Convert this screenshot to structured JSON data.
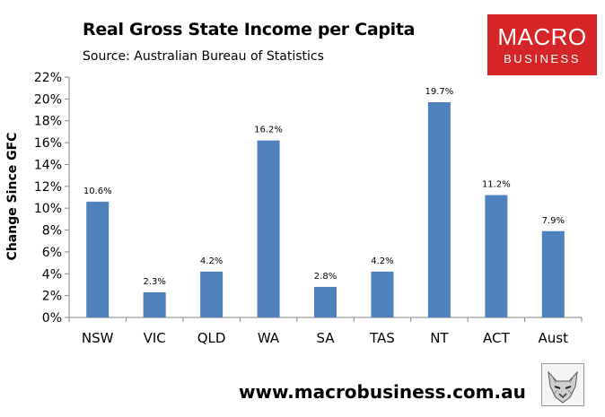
{
  "header": {
    "title": "Real Gross State Income per Capita",
    "source": "Source: Australian Bureau of Statistics"
  },
  "logo": {
    "line1": "MACRO",
    "line2": "BUSINESS"
  },
  "footer": {
    "url": "www.macrobusiness.com.au"
  },
  "colors": {
    "bar": "#4f81bd",
    "logo_bg": "#d62526"
  },
  "chart_data": {
    "type": "bar",
    "title": "Real Gross State Income per Capita",
    "ylabel": "Change Since GFC",
    "xlabel": "",
    "categories": [
      "NSW",
      "VIC",
      "QLD",
      "WA",
      "SA",
      "TAS",
      "NT",
      "ACT",
      "Aust"
    ],
    "values": [
      10.6,
      2.3,
      4.2,
      16.2,
      2.8,
      4.2,
      19.7,
      11.2,
      7.9
    ],
    "data_labels": [
      "10.6%",
      "2.3%",
      "4.2%",
      "16.2%",
      "2.8%",
      "4.2%",
      "19.7%",
      "11.2%",
      "7.9%"
    ],
    "ylim": [
      0,
      22
    ],
    "yticks": [
      "0%",
      "2%",
      "4%",
      "6%",
      "8%",
      "10%",
      "12%",
      "14%",
      "16%",
      "18%",
      "20%",
      "22%"
    ],
    "grid": false,
    "legend": "none"
  }
}
